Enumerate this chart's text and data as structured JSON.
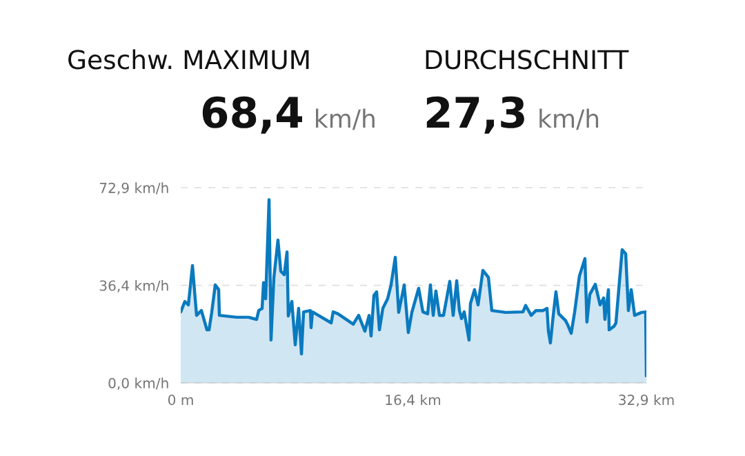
{
  "chart_data": {
    "type": "area",
    "annotations": [
      "Geschw. MAXIMUM",
      "DURCHSCHNITT",
      "68,4 km/h",
      "27,3 km/h"
    ],
    "x": [
      0,
      0.29,
      0.54,
      0.83,
      1.02,
      1.12,
      1.46,
      1.85,
      2.0,
      2.19,
      2.44,
      2.68,
      2.73,
      3.95,
      4.78,
      5.36,
      5.51,
      5.75,
      5.85,
      6.0,
      6.24,
      6.38,
      6.58,
      6.87,
      7.07,
      7.31,
      7.51,
      7.6,
      7.85,
      8.09,
      8.33,
      8.53,
      8.68,
      9.16,
      9.21,
      9.31,
      10.63,
      10.77,
      11.11,
      12.19,
      12.57,
      13.01,
      13.31,
      13.45,
      13.65,
      13.84,
      14.04,
      14.28,
      14.62,
      14.86,
      15.16,
      15.4,
      15.79,
      16.08,
      16.33,
      16.81,
      17.11,
      17.45,
      17.64,
      17.84,
      18.03,
      18.28,
      18.57,
      19.01,
      19.25,
      19.5,
      19.69,
      19.84,
      20.03,
      20.37,
      20.47,
      20.76,
      21.01,
      21.35,
      21.74,
      21.98,
      22.96,
      24.18,
      24.37,
      24.76,
      25.1,
      25.59,
      25.88,
      25.98,
      26.12,
      26.32,
      26.51,
      26.71,
      27.2,
      27.39,
      27.59,
      27.83,
      28.17,
      28.56,
      28.7,
      28.9,
      29.29,
      29.63,
      29.88,
      29.97,
      30.22,
      30.27,
      30.61,
      30.75,
      31.19,
      31.44,
      31.63,
      31.83,
      32.07,
      32.56,
      32.85,
      32.9
    ],
    "series": [
      {
        "color": "#0a7abf",
        "values": [
          26.5,
          30.4,
          29.1,
          43.8,
          31.4,
          25.2,
          27.0,
          19.8,
          19.8,
          26.3,
          36.6,
          34.8,
          25.2,
          24.5,
          24.5,
          23.7,
          27.0,
          27.8,
          37.4,
          31.4,
          68.4,
          16.0,
          39.2,
          53.3,
          41.7,
          40.4,
          48.9,
          25.0,
          30.4,
          14.2,
          27.8,
          10.8,
          26.5,
          27.0,
          20.6,
          26.5,
          22.4,
          26.5,
          25.8,
          21.9,
          25.2,
          19.3,
          25.2,
          17.5,
          32.7,
          34.0,
          19.8,
          27.8,
          31.4,
          36.6,
          46.9,
          26.3,
          36.6,
          18.8,
          26.3,
          35.3,
          26.5,
          25.8,
          36.6,
          25.2,
          34.3,
          25.2,
          25.2,
          37.9,
          25.2,
          38.1,
          27.0,
          24.0,
          26.5,
          16.0,
          29.6,
          34.8,
          29.1,
          42.0,
          39.4,
          27.0,
          26.3,
          26.5,
          28.9,
          25.2,
          27.0,
          27.0,
          27.8,
          19.3,
          14.9,
          25.2,
          34.0,
          25.8,
          23.2,
          21.1,
          18.5,
          26.3,
          39.9,
          46.4,
          22.7,
          33.0,
          36.8,
          29.1,
          31.7,
          23.7,
          34.8,
          19.8,
          21.1,
          22.4,
          49.7,
          48.2,
          27.0,
          34.8,
          25.2,
          26.3,
          26.5,
          2.6
        ]
      }
    ],
    "xlim": [
      0,
      32.9
    ],
    "xticks": [
      {
        "value": 0,
        "label": "0 m"
      },
      {
        "value": 16.4,
        "label": "16,4 km"
      },
      {
        "value": 32.9,
        "label": "32,9 km"
      }
    ],
    "ylim": [
      0,
      72.9
    ],
    "yticks": [
      {
        "value": 0,
        "label": "0,0 km/h"
      },
      {
        "value": 36.4,
        "label": "36,4 km/h"
      },
      {
        "value": 72.9,
        "label": "72,9 km/h"
      }
    ],
    "grid": "y"
  }
}
